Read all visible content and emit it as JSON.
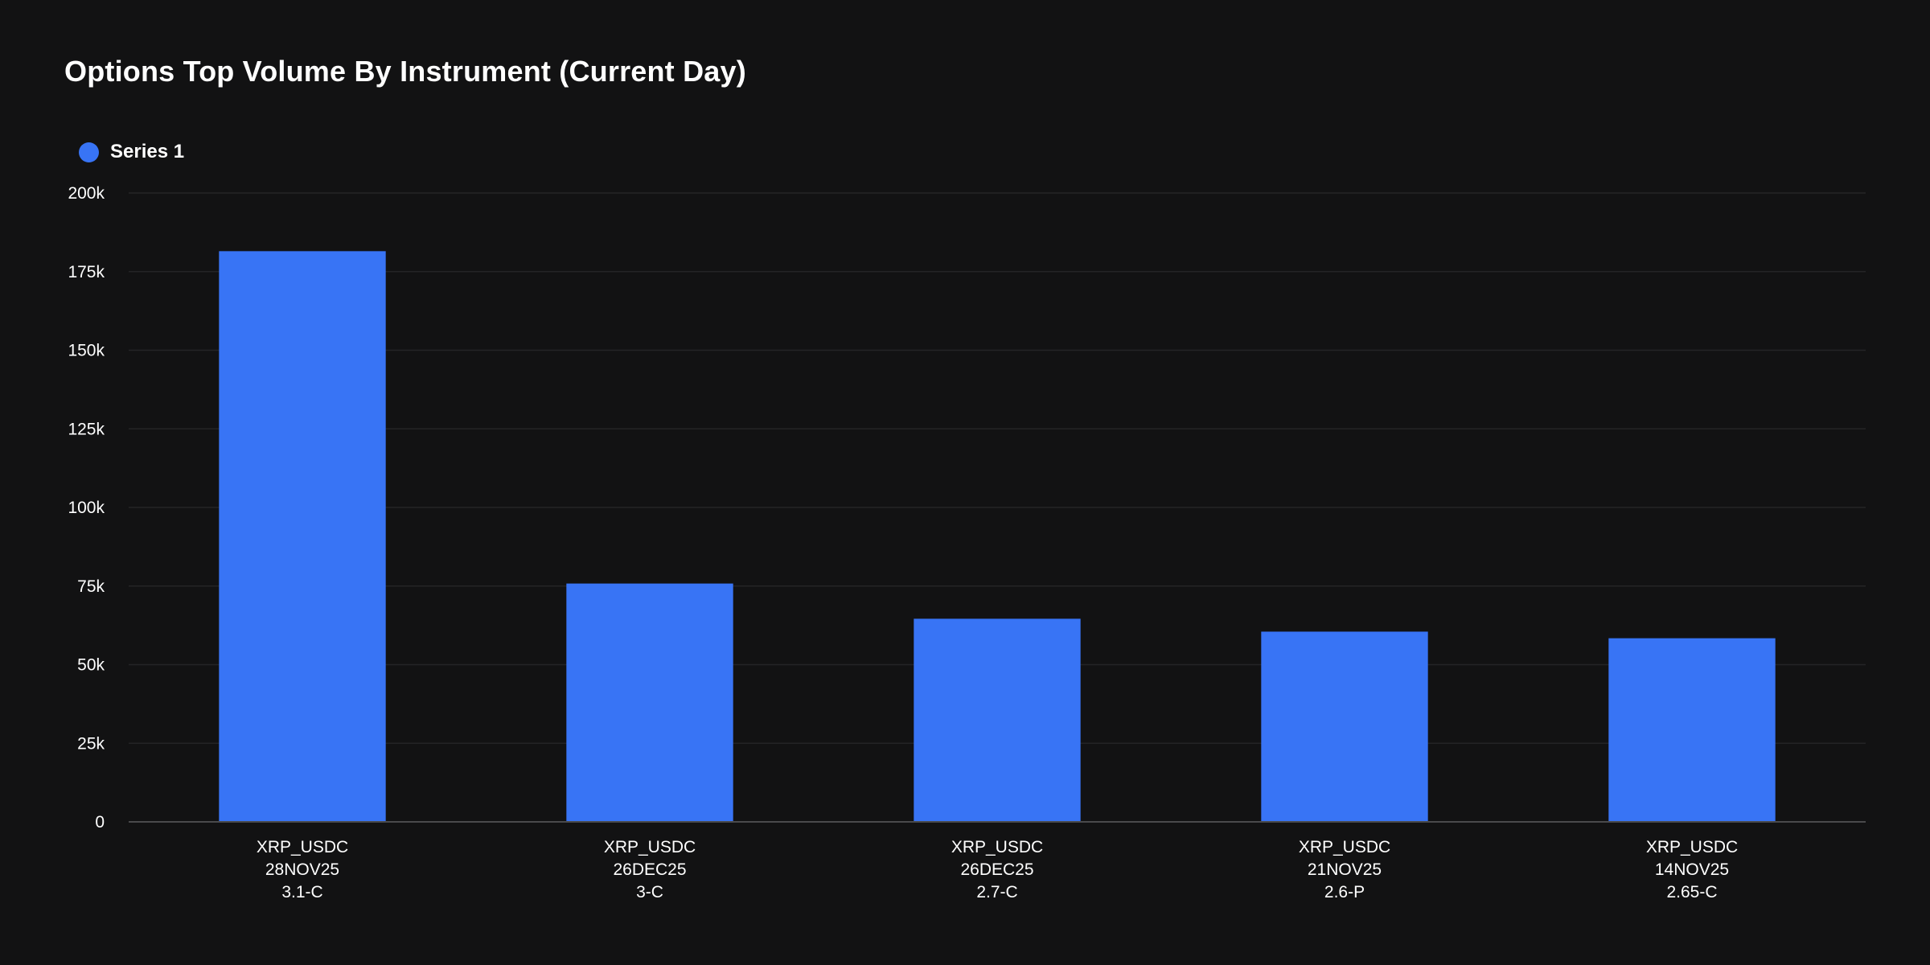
{
  "chart_data": {
    "type": "bar",
    "title": "Options Top Volume By Instrument (Current Day)",
    "legend_position": "top-left",
    "grid": true,
    "xlabel": "",
    "ylabel": "",
    "ylim": [
      0,
      200000
    ],
    "y_ticks": [
      0,
      25000,
      50000,
      75000,
      100000,
      125000,
      150000,
      175000,
      200000
    ],
    "y_tick_labels": [
      "0",
      "25k",
      "50k",
      "75k",
      "100k",
      "125k",
      "150k",
      "175k",
      "200k"
    ],
    "categories": [
      [
        "XRP_USDC",
        "28NOV25",
        "3.1-C"
      ],
      [
        "XRP_USDC",
        "26DEC25",
        "3-C"
      ],
      [
        "XRP_USDC",
        "26DEC25",
        "2.7-C"
      ],
      [
        "XRP_USDC",
        "21NOV25",
        "2.6-P"
      ],
      [
        "XRP_USDC",
        "14NOV25",
        "2.65-C"
      ]
    ],
    "series": [
      {
        "name": "Series 1",
        "color": "#3874f5",
        "values": [
          181500,
          75800,
          64600,
          60500,
          58400
        ]
      }
    ]
  }
}
